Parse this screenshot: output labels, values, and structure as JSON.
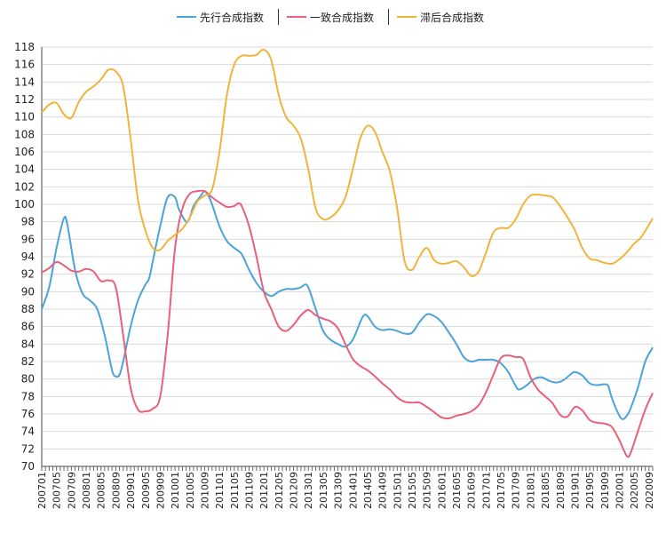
{
  "chart_data": {
    "type": "line",
    "title": "",
    "xlabel": "",
    "ylabel": "",
    "ylim": [
      70,
      118
    ],
    "yticks": [
      70,
      72,
      74,
      76,
      78,
      80,
      82,
      84,
      86,
      88,
      90,
      92,
      94,
      96,
      98,
      100,
      102,
      104,
      106,
      108,
      110,
      112,
      114,
      116,
      118
    ],
    "grid": "horizontal",
    "legend_position": "top-center",
    "x_start": "2007-01",
    "x_end": "2020-09",
    "xtick_labels": [
      "200701",
      "200705",
      "200709",
      "200801",
      "200805",
      "200809",
      "200901",
      "200905",
      "200909",
      "201001",
      "201005",
      "201009",
      "201101",
      "201105",
      "201109",
      "201201",
      "201205",
      "201209",
      "201301",
      "201305",
      "201309",
      "201401",
      "201405",
      "201409",
      "201501",
      "201505",
      "201509",
      "201601",
      "201605",
      "201609",
      "201701",
      "201705",
      "201709",
      "201801",
      "201805",
      "201809",
      "201901",
      "201905",
      "201909",
      "202001",
      "202005",
      "202009"
    ],
    "series": [
      {
        "name": "先行合成指数",
        "color": "#4aa3d9",
        "points": [
          [
            "200701",
            88.0
          ],
          [
            "200703",
            90.5
          ],
          [
            "200705",
            95.0
          ],
          [
            "200707",
            98.4
          ],
          [
            "200708",
            97.5
          ],
          [
            "200710",
            92.5
          ],
          [
            "200712",
            89.8
          ],
          [
            "200802",
            89.0
          ],
          [
            "200804",
            88.0
          ],
          [
            "200806",
            85.0
          ],
          [
            "200808",
            81.0
          ],
          [
            "200809",
            80.3
          ],
          [
            "200810",
            80.5
          ],
          [
            "200811",
            82.0
          ],
          [
            "200901",
            86.0
          ],
          [
            "200903",
            89.0
          ],
          [
            "200905",
            90.8
          ],
          [
            "200906",
            91.5
          ],
          [
            "200907",
            93.5
          ],
          [
            "200909",
            97.5
          ],
          [
            "200911",
            100.8
          ],
          [
            "201001",
            100.8
          ],
          [
            "201002",
            99.5
          ],
          [
            "201004",
            98.0
          ],
          [
            "201005",
            98.5
          ],
          [
            "201006",
            99.8
          ],
          [
            "201008",
            101.0
          ],
          [
            "201009",
            101.5
          ],
          [
            "201010",
            101.0
          ],
          [
            "201011",
            100.0
          ],
          [
            "201101",
            97.5
          ],
          [
            "201103",
            95.8
          ],
          [
            "201105",
            95.0
          ],
          [
            "201107",
            94.3
          ],
          [
            "201109",
            92.5
          ],
          [
            "201111",
            91.0
          ],
          [
            "201201",
            90.0
          ],
          [
            "201203",
            89.5
          ],
          [
            "201205",
            90.0
          ],
          [
            "201207",
            90.3
          ],
          [
            "201209",
            90.3
          ],
          [
            "201211",
            90.5
          ],
          [
            "201212",
            90.8
          ],
          [
            "201301",
            90.5
          ],
          [
            "201303",
            88.0
          ],
          [
            "201305",
            85.5
          ],
          [
            "201307",
            84.5
          ],
          [
            "201309",
            84.0
          ],
          [
            "201311",
            83.7
          ],
          [
            "201401",
            84.5
          ],
          [
            "201403",
            86.5
          ],
          [
            "201404",
            87.3
          ],
          [
            "201405",
            87.2
          ],
          [
            "201407",
            86.0
          ],
          [
            "201409",
            85.6
          ],
          [
            "201411",
            85.7
          ],
          [
            "201501",
            85.5
          ],
          [
            "201503",
            85.2
          ],
          [
            "201505",
            85.3
          ],
          [
            "201507",
            86.5
          ],
          [
            "201509",
            87.4
          ],
          [
            "201511",
            87.2
          ],
          [
            "201601",
            86.5
          ],
          [
            "201603",
            85.3
          ],
          [
            "201605",
            84.0
          ],
          [
            "201607",
            82.5
          ],
          [
            "201609",
            82.0
          ],
          [
            "201611",
            82.2
          ],
          [
            "201701",
            82.2
          ],
          [
            "201703",
            82.2
          ],
          [
            "201705",
            81.8
          ],
          [
            "201707",
            80.8
          ],
          [
            "201709",
            79.2
          ],
          [
            "201710",
            78.8
          ],
          [
            "201712",
            79.3
          ],
          [
            "201802",
            80.0
          ],
          [
            "201804",
            80.2
          ],
          [
            "201806",
            79.8
          ],
          [
            "201808",
            79.6
          ],
          [
            "201810",
            79.9
          ],
          [
            "201812",
            80.6
          ],
          [
            "201901",
            80.8
          ],
          [
            "201903",
            80.4
          ],
          [
            "201905",
            79.5
          ],
          [
            "201907",
            79.3
          ],
          [
            "201909",
            79.4
          ],
          [
            "201910",
            79.2
          ],
          [
            "201911",
            77.8
          ],
          [
            "202001",
            75.8
          ],
          [
            "202002",
            75.4
          ],
          [
            "202003",
            75.8
          ],
          [
            "202004",
            76.6
          ],
          [
            "202006",
            79.0
          ],
          [
            "202008",
            82.0
          ],
          [
            "202010",
            83.6
          ]
        ]
      },
      {
        "name": "一致合成指数",
        "color": "#e8607a",
        "points": [
          [
            "200701",
            92.2
          ],
          [
            "200703",
            92.7
          ],
          [
            "200705",
            93.4
          ],
          [
            "200707",
            93.0
          ],
          [
            "200709",
            92.4
          ],
          [
            "200711",
            92.3
          ],
          [
            "200801",
            92.6
          ],
          [
            "200803",
            92.3
          ],
          [
            "200805",
            91.2
          ],
          [
            "200807",
            91.3
          ],
          [
            "200809",
            90.5
          ],
          [
            "200811",
            85.0
          ],
          [
            "200901",
            79.0
          ],
          [
            "200903",
            76.5
          ],
          [
            "200905",
            76.3
          ],
          [
            "200907",
            76.6
          ],
          [
            "200909",
            78.0
          ],
          [
            "200911",
            85.0
          ],
          [
            "201001",
            95.0
          ],
          [
            "201003",
            99.5
          ],
          [
            "201005",
            101.2
          ],
          [
            "201007",
            101.5
          ],
          [
            "201009",
            101.5
          ],
          [
            "201011",
            100.8
          ],
          [
            "201101",
            100.2
          ],
          [
            "201103",
            99.7
          ],
          [
            "201105",
            99.8
          ],
          [
            "201106",
            100.1
          ],
          [
            "201107",
            99.8
          ],
          [
            "201109",
            97.5
          ],
          [
            "201111",
            94.0
          ],
          [
            "201201",
            90.0
          ],
          [
            "201203",
            88.0
          ],
          [
            "201205",
            86.0
          ],
          [
            "201207",
            85.5
          ],
          [
            "201209",
            86.2
          ],
          [
            "201211",
            87.3
          ],
          [
            "201301",
            87.9
          ],
          [
            "201303",
            87.3
          ],
          [
            "201305",
            86.9
          ],
          [
            "201307",
            86.6
          ],
          [
            "201309",
            85.8
          ],
          [
            "201311",
            84.0
          ],
          [
            "201401",
            82.3
          ],
          [
            "201403",
            81.5
          ],
          [
            "201405",
            81.0
          ],
          [
            "201407",
            80.3
          ],
          [
            "201409",
            79.5
          ],
          [
            "201411",
            78.8
          ],
          [
            "201501",
            77.9
          ],
          [
            "201503",
            77.4
          ],
          [
            "201505",
            77.3
          ],
          [
            "201507",
            77.3
          ],
          [
            "201509",
            76.8
          ],
          [
            "201511",
            76.2
          ],
          [
            "201601",
            75.6
          ],
          [
            "201603",
            75.5
          ],
          [
            "201605",
            75.8
          ],
          [
            "201607",
            76.0
          ],
          [
            "201609",
            76.3
          ],
          [
            "201611",
            77.0
          ],
          [
            "201701",
            78.5
          ],
          [
            "201703",
            80.5
          ],
          [
            "201705",
            82.4
          ],
          [
            "201707",
            82.7
          ],
          [
            "201709",
            82.5
          ],
          [
            "201711",
            82.3
          ],
          [
            "201801",
            80.2
          ],
          [
            "201803",
            78.8
          ],
          [
            "201805",
            78.0
          ],
          [
            "201807",
            77.2
          ],
          [
            "201809",
            75.9
          ],
          [
            "201811",
            75.7
          ],
          [
            "201901",
            76.8
          ],
          [
            "201903",
            76.4
          ],
          [
            "201905",
            75.3
          ],
          [
            "201907",
            75.0
          ],
          [
            "201909",
            74.9
          ],
          [
            "201911",
            74.5
          ],
          [
            "202001",
            73.0
          ],
          [
            "202003",
            71.2
          ],
          [
            "202004",
            71.5
          ],
          [
            "202006",
            74.0
          ],
          [
            "202008",
            76.5
          ],
          [
            "202010",
            78.4
          ]
        ]
      },
      {
        "name": "滞后合成指数",
        "color": "#f0b43c",
        "points": [
          [
            "200701",
            110.5
          ],
          [
            "200703",
            111.4
          ],
          [
            "200705",
            111.6
          ],
          [
            "200707",
            110.3
          ],
          [
            "200709",
            109.9
          ],
          [
            "200711",
            111.7
          ],
          [
            "200801",
            112.9
          ],
          [
            "200803",
            113.5
          ],
          [
            "200805",
            114.3
          ],
          [
            "200807",
            115.4
          ],
          [
            "200809",
            115.2
          ],
          [
            "200811",
            113.5
          ],
          [
            "200901",
            107.5
          ],
          [
            "200903",
            100.5
          ],
          [
            "200905",
            97.0
          ],
          [
            "200907",
            95.0
          ],
          [
            "200909",
            94.8
          ],
          [
            "200911",
            95.8
          ],
          [
            "201001",
            96.5
          ],
          [
            "201003",
            97.2
          ],
          [
            "201005",
            98.5
          ],
          [
            "201007",
            100.3
          ],
          [
            "201009",
            101.0
          ],
          [
            "201011",
            101.7
          ],
          [
            "201101",
            106.0
          ],
          [
            "201103",
            112.5
          ],
          [
            "201105",
            116.0
          ],
          [
            "201107",
            117.0
          ],
          [
            "201109",
            117.0
          ],
          [
            "201111",
            117.1
          ],
          [
            "201201",
            117.7
          ],
          [
            "201203",
            116.5
          ],
          [
            "201205",
            112.5
          ],
          [
            "201207",
            110.0
          ],
          [
            "201209",
            109.0
          ],
          [
            "201211",
            107.5
          ],
          [
            "201301",
            104.0
          ],
          [
            "201303",
            99.5
          ],
          [
            "201305",
            98.3
          ],
          [
            "201307",
            98.5
          ],
          [
            "201309",
            99.3
          ],
          [
            "201311",
            100.8
          ],
          [
            "201401",
            104.0
          ],
          [
            "201403",
            107.5
          ],
          [
            "201405",
            109.0
          ],
          [
            "201407",
            108.3
          ],
          [
            "201409",
            106.0
          ],
          [
            "201411",
            103.8
          ],
          [
            "201501",
            99.5
          ],
          [
            "201503",
            93.5
          ],
          [
            "201505",
            92.5
          ],
          [
            "201507",
            94.0
          ],
          [
            "201509",
            95.0
          ],
          [
            "201511",
            93.6
          ],
          [
            "201601",
            93.2
          ],
          [
            "201603",
            93.3
          ],
          [
            "201605",
            93.5
          ],
          [
            "201607",
            92.8
          ],
          [
            "201609",
            91.8
          ],
          [
            "201611",
            92.3
          ],
          [
            "201701",
            94.5
          ],
          [
            "201703",
            96.8
          ],
          [
            "201705",
            97.3
          ],
          [
            "201707",
            97.3
          ],
          [
            "201709",
            98.3
          ],
          [
            "201711",
            100.0
          ],
          [
            "201801",
            101.0
          ],
          [
            "201803",
            101.1
          ],
          [
            "201805",
            101.0
          ],
          [
            "201807",
            100.8
          ],
          [
            "201809",
            99.8
          ],
          [
            "201811",
            98.5
          ],
          [
            "201901",
            97.0
          ],
          [
            "201903",
            95.0
          ],
          [
            "201905",
            93.8
          ],
          [
            "201907",
            93.6
          ],
          [
            "201909",
            93.3
          ],
          [
            "201911",
            93.2
          ],
          [
            "202001",
            93.7
          ],
          [
            "202003",
            94.5
          ],
          [
            "202005",
            95.5
          ],
          [
            "202007",
            96.3
          ],
          [
            "202010",
            98.4
          ]
        ]
      }
    ]
  }
}
